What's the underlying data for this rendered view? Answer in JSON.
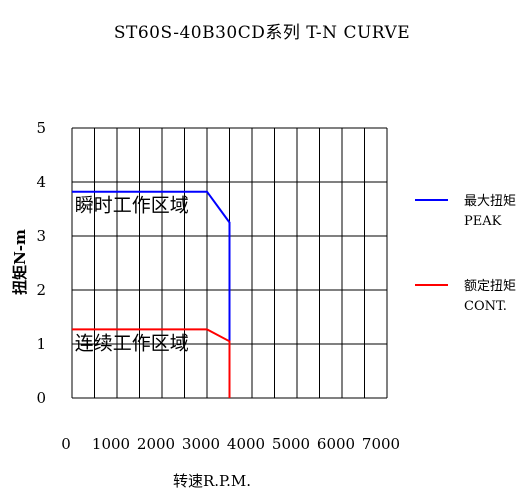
{
  "chart_data": {
    "type": "line",
    "title": "ST60S-40B30CD系列 T-N CURVE",
    "xlabel": "转速R.P.M.",
    "ylabel": "扭矩N-m",
    "xlim": [
      0,
      7000
    ],
    "ylim": [
      0,
      5
    ],
    "xticks": [
      "0",
      "1000",
      "2000",
      "3000",
      "4000",
      "5000",
      "6000",
      "7000"
    ],
    "yticks": [
      "0",
      "1",
      "2",
      "3",
      "4",
      "5"
    ],
    "x_grid_step": 500,
    "grid": true,
    "legend_position": "right",
    "series": [
      {
        "name": "最大扭矩",
        "name_sub": "PEAK",
        "color": "#0000ff",
        "x": [
          0,
          3000,
          3500,
          3500
        ],
        "y": [
          3.82,
          3.82,
          3.25,
          1.05
        ]
      },
      {
        "name": "额定扭矩",
        "name_sub": "CONT.",
        "color": "#ff0000",
        "x": [
          0,
          3000,
          3500,
          3500
        ],
        "y": [
          1.27,
          1.27,
          1.05,
          0
        ]
      }
    ],
    "annotations": [
      {
        "text": "瞬时工作区域",
        "x": 60,
        "y": 3.45
      },
      {
        "text": "连续工作区域",
        "x": 60,
        "y": 0.9
      }
    ]
  }
}
